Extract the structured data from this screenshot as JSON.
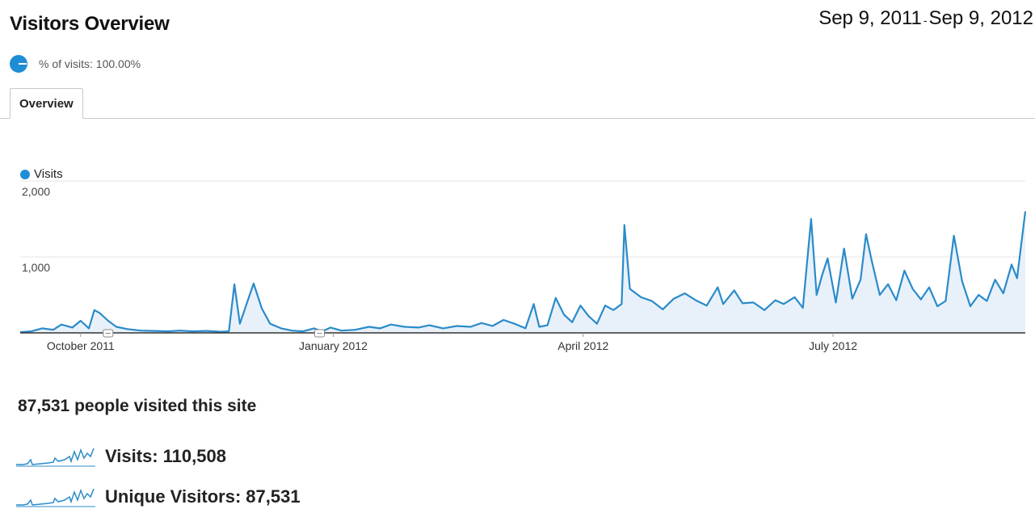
{
  "header": {
    "title": "Visitors Overview",
    "date_start": "Sep 9, 2011",
    "date_sep": "-",
    "date_end": "Sep 9, 2012"
  },
  "segment": {
    "label": "% of visits: 100.00%",
    "percent": 100
  },
  "tabs": [
    {
      "label": "Overview",
      "active": true
    }
  ],
  "legend": {
    "label": "Visits",
    "color": "#1f8dd6"
  },
  "colors": {
    "line": "#2a8bc9",
    "fill": "#e8f1fa",
    "grid": "#e6e6e6",
    "axis": "#333333"
  },
  "summary": {
    "headline": "87,531 people visited this site",
    "metrics": [
      {
        "label": "Visits:",
        "value": "110,508",
        "icon": "sparkline-icon"
      },
      {
        "label": "Unique Visitors:",
        "value": "87,531",
        "icon": "sparkline-icon"
      }
    ]
  },
  "chart_data": {
    "type": "area",
    "ylim": [
      0,
      2000
    ],
    "yticks": [
      {
        "value": 1000,
        "label": "1,000"
      },
      {
        "value": 2000,
        "label": "2,000"
      }
    ],
    "xticks": [
      {
        "date": "2011-10-01",
        "label": "October 2011"
      },
      {
        "date": "2012-01-01",
        "label": "January 2012"
      },
      {
        "date": "2012-04-01",
        "label": "April 2012"
      },
      {
        "date": "2012-07-01",
        "label": "July 2012"
      }
    ],
    "annotations": [
      {
        "date": "2011-10-11"
      },
      {
        "date": "2011-12-27"
      }
    ],
    "series": [
      {
        "name": "Visits",
        "points": [
          [
            "2011-09-09",
            10
          ],
          [
            "2011-09-13",
            20
          ],
          [
            "2011-09-17",
            60
          ],
          [
            "2011-09-21",
            40
          ],
          [
            "2011-09-24",
            110
          ],
          [
            "2011-09-28",
            70
          ],
          [
            "2011-10-01",
            160
          ],
          [
            "2011-10-04",
            60
          ],
          [
            "2011-10-06",
            300
          ],
          [
            "2011-10-08",
            260
          ],
          [
            "2011-10-11",
            160
          ],
          [
            "2011-10-14",
            80
          ],
          [
            "2011-10-18",
            50
          ],
          [
            "2011-10-23",
            30
          ],
          [
            "2011-10-28",
            25
          ],
          [
            "2011-11-02",
            20
          ],
          [
            "2011-11-06",
            30
          ],
          [
            "2011-11-11",
            20
          ],
          [
            "2011-11-16",
            25
          ],
          [
            "2011-11-21",
            15
          ],
          [
            "2011-11-24",
            20
          ],
          [
            "2011-11-26",
            640
          ],
          [
            "2011-11-28",
            120
          ],
          [
            "2011-12-01",
            440
          ],
          [
            "2011-12-03",
            650
          ],
          [
            "2011-12-06",
            320
          ],
          [
            "2011-12-09",
            120
          ],
          [
            "2011-12-13",
            60
          ],
          [
            "2011-12-17",
            30
          ],
          [
            "2011-12-21",
            20
          ],
          [
            "2011-12-25",
            60
          ],
          [
            "2011-12-28",
            20
          ],
          [
            "2011-12-31",
            70
          ],
          [
            "2012-01-04",
            30
          ],
          [
            "2012-01-09",
            40
          ],
          [
            "2012-01-14",
            80
          ],
          [
            "2012-01-18",
            60
          ],
          [
            "2012-01-22",
            110
          ],
          [
            "2012-01-27",
            80
          ],
          [
            "2012-02-01",
            70
          ],
          [
            "2012-02-05",
            100
          ],
          [
            "2012-02-10",
            60
          ],
          [
            "2012-02-15",
            90
          ],
          [
            "2012-02-20",
            80
          ],
          [
            "2012-02-24",
            130
          ],
          [
            "2012-02-28",
            90
          ],
          [
            "2012-03-03",
            170
          ],
          [
            "2012-03-07",
            120
          ],
          [
            "2012-03-11",
            60
          ],
          [
            "2012-03-14",
            380
          ],
          [
            "2012-03-16",
            80
          ],
          [
            "2012-03-19",
            100
          ],
          [
            "2012-03-22",
            460
          ],
          [
            "2012-03-25",
            240
          ],
          [
            "2012-03-28",
            140
          ],
          [
            "2012-03-31",
            360
          ],
          [
            "2012-04-03",
            220
          ],
          [
            "2012-04-06",
            120
          ],
          [
            "2012-04-09",
            360
          ],
          [
            "2012-04-12",
            300
          ],
          [
            "2012-04-15",
            380
          ],
          [
            "2012-04-16",
            1420
          ],
          [
            "2012-04-18",
            580
          ],
          [
            "2012-04-22",
            470
          ],
          [
            "2012-04-26",
            420
          ],
          [
            "2012-04-30",
            310
          ],
          [
            "2012-05-04",
            450
          ],
          [
            "2012-05-08",
            520
          ],
          [
            "2012-05-12",
            430
          ],
          [
            "2012-05-16",
            360
          ],
          [
            "2012-05-20",
            600
          ],
          [
            "2012-05-22",
            380
          ],
          [
            "2012-05-26",
            560
          ],
          [
            "2012-05-29",
            390
          ],
          [
            "2012-06-02",
            400
          ],
          [
            "2012-06-06",
            300
          ],
          [
            "2012-06-10",
            430
          ],
          [
            "2012-06-13",
            380
          ],
          [
            "2012-06-17",
            470
          ],
          [
            "2012-06-20",
            330
          ],
          [
            "2012-06-23",
            1500
          ],
          [
            "2012-06-25",
            500
          ],
          [
            "2012-06-27",
            760
          ],
          [
            "2012-06-29",
            980
          ],
          [
            "2012-07-02",
            400
          ],
          [
            "2012-07-05",
            1110
          ],
          [
            "2012-07-08",
            450
          ],
          [
            "2012-07-11",
            700
          ],
          [
            "2012-07-13",
            1300
          ],
          [
            "2012-07-15",
            960
          ],
          [
            "2012-07-18",
            500
          ],
          [
            "2012-07-21",
            640
          ],
          [
            "2012-07-24",
            430
          ],
          [
            "2012-07-27",
            820
          ],
          [
            "2012-07-30",
            580
          ],
          [
            "2012-08-02",
            440
          ],
          [
            "2012-08-05",
            600
          ],
          [
            "2012-08-08",
            350
          ],
          [
            "2012-08-11",
            420
          ],
          [
            "2012-08-14",
            1280
          ],
          [
            "2012-08-17",
            680
          ],
          [
            "2012-08-20",
            350
          ],
          [
            "2012-08-23",
            500
          ],
          [
            "2012-08-26",
            420
          ],
          [
            "2012-08-29",
            700
          ],
          [
            "2012-09-01",
            520
          ],
          [
            "2012-09-04",
            900
          ],
          [
            "2012-09-06",
            720
          ],
          [
            "2012-09-09",
            1600
          ]
        ]
      }
    ]
  }
}
